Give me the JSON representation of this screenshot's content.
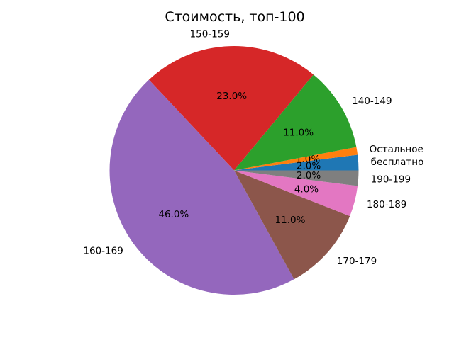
{
  "page": {
    "background": "#ffffff",
    "text_color": "#000000"
  },
  "chart_data": {
    "type": "pie",
    "title": "Стоимость, топ-100",
    "slices": [
      {
        "label": "бесплатно",
        "value": 2.0,
        "pct_label": "2.0%",
        "color": "#1f77b4"
      },
      {
        "label": "Остальное",
        "value": 1.0,
        "pct_label": "1.0%",
        "color": "#ff7f0e"
      },
      {
        "label": "140-149",
        "value": 11.0,
        "pct_label": "11.0%",
        "color": "#2ca02c"
      },
      {
        "label": "150-159",
        "value": 23.0,
        "pct_label": "23.0%",
        "color": "#d62728"
      },
      {
        "label": "160-169",
        "value": 46.0,
        "pct_label": "46.0%",
        "color": "#9467bd"
      },
      {
        "label": "170-179",
        "value": 11.0,
        "pct_label": "11.0%",
        "color": "#8c564b"
      },
      {
        "label": "180-189",
        "value": 4.0,
        "pct_label": "4.0%",
        "color": "#e377c2"
      },
      {
        "label": "190-199",
        "value": 2.0,
        "pct_label": "2.0%",
        "color": "#7f7f7f"
      }
    ],
    "start_angle_deg": 0,
    "direction": "counterclockwise",
    "label_distance": 1.1,
    "pct_distance": 0.6,
    "legend_position": "none",
    "grid": false
  }
}
